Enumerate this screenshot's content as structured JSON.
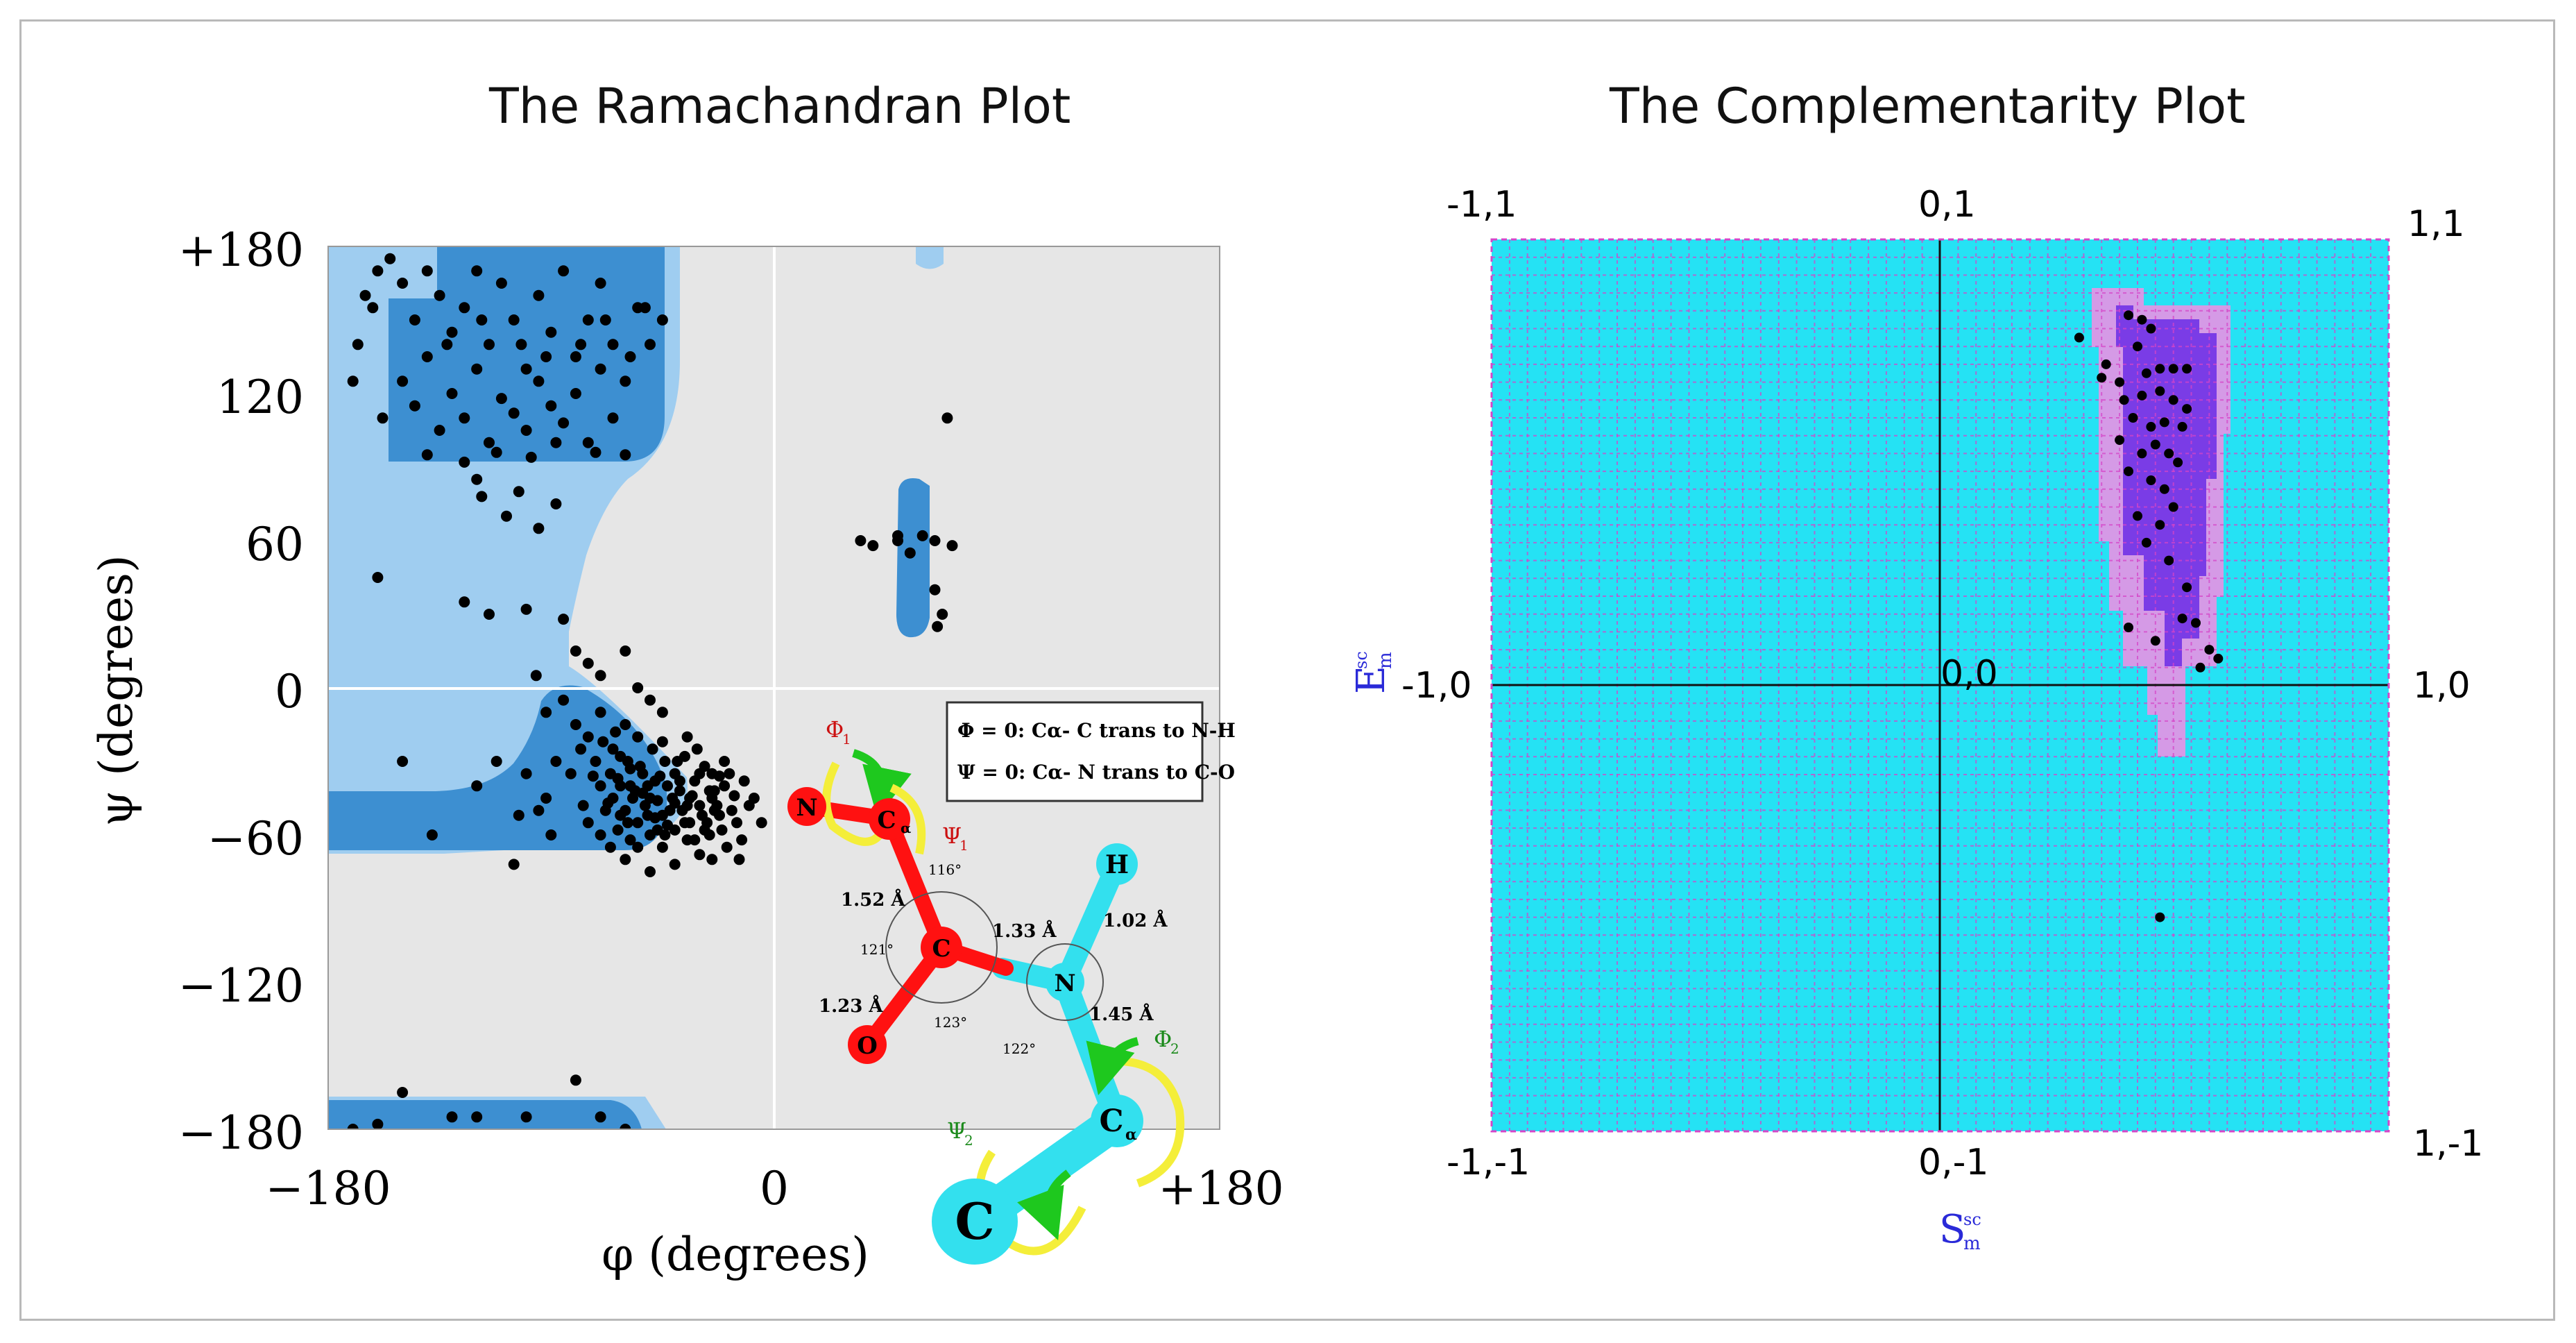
{
  "titles": {
    "ramachandran": "The Ramachandran Plot",
    "complementarity": "The Complementarity Plot"
  },
  "colors": {
    "rama_background": "#e6e6e6",
    "rama_allowed": "#9fcdf0",
    "rama_favored": "#3d8fd1",
    "comp_background": "#25e2f4",
    "comp_grid": "#d545c8",
    "comp_probable": "#d59ae6",
    "comp_most_probable": "#7a3ce6",
    "points": "#000000",
    "molecule_red": "#ff1111",
    "molecule_cyan": "#33e0ee",
    "arrow_green": "#1ec81e",
    "arrow_yellow": "#f4ee3a"
  },
  "ramachandran": {
    "xlabel": "φ (degrees)",
    "ylabel": "ψ (degrees)",
    "x_ticks": [
      "−180",
      "0",
      "+180"
    ],
    "y_ticks": [
      "+180",
      "120",
      "60",
      "0",
      "−60",
      "−120",
      "−180"
    ],
    "legend": {
      "phi_def": "Φ = 0: Cα- C trans to N-H",
      "psi_def": "Ψ = 0: Cα- N trans to C-O"
    },
    "molecule": {
      "atoms": {
        "N": "N",
        "Ca1": "C",
        "Ca1_sub": "α",
        "C": "C",
        "O": "O",
        "N2": "N",
        "H": "H",
        "Ca2": "C",
        "Ca2_sub": "α",
        "C2": "C"
      },
      "bonds": {
        "b1": "1.52 Å",
        "b2": "1.33 Å",
        "b3": "1.02 Å",
        "b4": "1.23 Å",
        "b5": "1.45 Å"
      },
      "angles": {
        "a1": "116°",
        "a2": "121°",
        "a3": "123°",
        "a4": "122°"
      },
      "torsions": {
        "phi1": "Φ",
        "phi1_sub": "1",
        "psi1": "Ψ",
        "psi1_sub": "1",
        "phi2": "Φ",
        "phi2_sub": "2",
        "psi2": "Ψ",
        "psi2_sub": "2"
      }
    }
  },
  "complementarity": {
    "xlabel": "S",
    "xlabel_sub": "m",
    "xlabel_sup": "sc",
    "ylabel": "E",
    "ylabel_sub": "m",
    "ylabel_sup": "sc",
    "corner_labels": {
      "top_left": "-1,1",
      "top_mid": "0,1",
      "top_right": "1,1",
      "mid_left": "-1,0",
      "center": "0,0",
      "mid_right": "1,0",
      "bottom_left": "-1,-1",
      "bottom_mid": "0,-1",
      "bottom_right": "1,-1"
    }
  },
  "chart_data": [
    {
      "type": "scatter",
      "title": "The Ramachandran Plot",
      "xlabel": "φ (degrees)",
      "ylabel": "ψ (degrees)",
      "xlim": [
        -180,
        180
      ],
      "ylim": [
        -180,
        180
      ],
      "x_ticks": [
        -180,
        0,
        180
      ],
      "y_ticks": [
        180,
        120,
        60,
        0,
        -60,
        -120,
        -180
      ],
      "grid": "zero lines only",
      "legend_position": "lower-right inset",
      "points": [
        [
          -160,
          170
        ],
        [
          -155,
          175
        ],
        [
          -162,
          155
        ],
        [
          -168,
          140
        ],
        [
          -150,
          165
        ],
        [
          -145,
          150
        ],
        [
          -140,
          170
        ],
        [
          -135,
          160
        ],
        [
          -130,
          145
        ],
        [
          -125,
          155
        ],
        [
          -120,
          170
        ],
        [
          -115,
          140
        ],
        [
          -110,
          165
        ],
        [
          -105,
          150
        ],
        [
          -100,
          130
        ],
        [
          -95,
          160
        ],
        [
          -90,
          145
        ],
        [
          -85,
          170
        ],
        [
          -80,
          135
        ],
        [
          -75,
          150
        ],
        [
          -70,
          165
        ],
        [
          -65,
          140
        ],
        [
          -60,
          125
        ],
        [
          -55,
          155
        ],
        [
          -150,
          125
        ],
        [
          -145,
          115
        ],
        [
          -140,
          135
        ],
        [
          -135,
          105
        ],
        [
          -130,
          120
        ],
        [
          -125,
          110
        ],
        [
          -120,
          130
        ],
        [
          -115,
          100
        ],
        [
          -110,
          118
        ],
        [
          -105,
          112
        ],
        [
          -100,
          105
        ],
        [
          -95,
          125
        ],
        [
          -90,
          115
        ],
        [
          -85,
          108
        ],
        [
          -80,
          120
        ],
        [
          -75,
          100
        ],
        [
          -70,
          130
        ],
        [
          -65,
          110
        ],
        [
          -140,
          95
        ],
        [
          -125,
          92
        ],
        [
          -112,
          96
        ],
        [
          -98,
          94
        ],
        [
          -88,
          100
        ],
        [
          -72,
          96
        ],
        [
          -60,
          95
        ],
        [
          -50,
          140
        ],
        [
          -165,
          160
        ],
        [
          -170,
          125
        ],
        [
          -158,
          110
        ],
        [
          -132,
          140
        ],
        [
          -118,
          150
        ],
        [
          -102,
          140
        ],
        [
          -92,
          135
        ],
        [
          -78,
          140
        ],
        [
          -68,
          150
        ],
        [
          -58,
          135
        ],
        [
          -52,
          155
        ],
        [
          -45,
          150
        ],
        [
          -120,
          85
        ],
        [
          -118,
          78
        ],
        [
          -108,
          70
        ],
        [
          -103,
          80
        ],
        [
          -95,
          65
        ],
        [
          -88,
          75
        ],
        [
          -160,
          45
        ],
        [
          -125,
          35
        ],
        [
          -115,
          30
        ],
        [
          -100,
          32
        ],
        [
          -85,
          28
        ],
        [
          -80,
          15
        ],
        [
          -75,
          10
        ],
        [
          -70,
          5
        ],
        [
          -60,
          15
        ],
        [
          -55,
          0
        ],
        [
          -150,
          -30
        ],
        [
          -120,
          -40
        ],
        [
          -112,
          -30
        ],
        [
          -100,
          -35
        ],
        [
          -92,
          -45
        ],
        [
          -103,
          -52
        ],
        [
          -138,
          -60
        ],
        [
          -105,
          -72
        ],
        [
          -85,
          -5
        ],
        [
          -80,
          -15
        ],
        [
          -75,
          -20
        ],
        [
          -70,
          -10
        ],
        [
          -65,
          -25
        ],
        [
          -60,
          -15
        ],
        [
          -55,
          -20
        ],
        [
          -50,
          -5
        ],
        [
          -45,
          -10
        ],
        [
          -78,
          -25
        ],
        [
          -72,
          -30
        ],
        [
          -66,
          -35
        ],
        [
          -62,
          -28
        ],
        [
          -58,
          -40
        ],
        [
          -54,
          -32
        ],
        [
          -50,
          -45
        ],
        [
          -46,
          -36
        ],
        [
          -42,
          -50
        ],
        [
          -38,
          -42
        ],
        [
          -34,
          -55
        ],
        [
          -30,
          -48
        ],
        [
          -26,
          -60
        ],
        [
          -22,
          -52
        ],
        [
          -70,
          -40
        ],
        [
          -65,
          -45
        ],
        [
          -60,
          -50
        ],
        [
          -55,
          -55
        ],
        [
          -50,
          -60
        ],
        [
          -45,
          -65
        ],
        [
          -40,
          -58
        ],
        [
          -35,
          -62
        ],
        [
          -30,
          -68
        ],
        [
          -25,
          -45
        ],
        [
          -20,
          -40
        ],
        [
          -15,
          -55
        ],
        [
          -10,
          -48
        ],
        [
          -68,
          -50
        ],
        [
          -63,
          -58
        ],
        [
          -58,
          -62
        ],
        [
          -52,
          -48
        ],
        [
          -48,
          -38
        ],
        [
          -44,
          -30
        ],
        [
          -40,
          -35
        ],
        [
          -36,
          -28
        ],
        [
          -32,
          -38
        ],
        [
          -28,
          -32
        ],
        [
          -24,
          -42
        ],
        [
          -20,
          -30
        ],
        [
          -16,
          -44
        ],
        [
          -12,
          -38
        ],
        [
          -75,
          -55
        ],
        [
          -70,
          -60
        ],
        [
          -66,
          -65
        ],
        [
          -62,
          -52
        ],
        [
          -57,
          -45
        ],
        [
          -53,
          -35
        ],
        [
          -49,
          -25
        ],
        [
          -45,
          -22
        ],
        [
          -41,
          -45
        ],
        [
          -37,
          -50
        ],
        [
          -33,
          -44
        ],
        [
          -29,
          -52
        ],
        [
          -25,
          -35
        ],
        [
          -21,
          -58
        ],
        [
          -17,
          -50
        ],
        [
          -13,
          -62
        ],
        [
          -82,
          -35
        ],
        [
          -77,
          -48
        ],
        [
          -73,
          -36
        ],
        [
          -69,
          -22
        ],
        [
          -64,
          -18
        ],
        [
          -59,
          -30
        ],
        [
          -56,
          -42
        ],
        [
          -51,
          -52
        ],
        [
          -47,
          -58
        ],
        [
          -43,
          -40
        ],
        [
          -39,
          -30
        ],
        [
          -35,
          -20
        ],
        [
          -31,
          -25
        ],
        [
          -27,
          -55
        ],
        [
          -23,
          -48
        ],
        [
          -19,
          -65
        ],
        [
          -8,
          -45
        ],
        [
          -5,
          -55
        ],
        [
          -90,
          -60
        ],
        [
          -95,
          -50
        ],
        [
          -88,
          -30
        ],
        [
          -92,
          -10
        ],
        [
          -96,
          5
        ],
        [
          -60,
          -70
        ],
        [
          -50,
          -75
        ],
        [
          -40,
          -72
        ],
        [
          -25,
          -70
        ],
        [
          -55,
          -65
        ],
        [
          -45,
          -52
        ],
        [
          -35,
          -48
        ],
        [
          -28,
          -58
        ],
        [
          -18,
          -35
        ],
        [
          -14,
          -70
        ],
        [
          -62,
          -40
        ],
        [
          -58,
          -33
        ],
        [
          -53,
          -43
        ],
        [
          -48,
          -53
        ],
        [
          -44,
          -60
        ],
        [
          -40,
          -47
        ],
        [
          -36,
          -55
        ],
        [
          -32,
          -62
        ],
        [
          -26,
          -42
        ],
        [
          -22,
          -36
        ],
        [
          -67,
          -47
        ],
        [
          -63,
          -37
        ],
        [
          -59,
          -55
        ],
        [
          -51,
          -40
        ],
        [
          -47,
          -46
        ],
        [
          -43,
          -56
        ],
        [
          -38,
          -38
        ],
        [
          -34,
          -45
        ],
        [
          -30,
          -35
        ],
        [
          -24,
          -50
        ],
        [
          35,
          60
        ],
        [
          40,
          58
        ],
        [
          50,
          62
        ],
        [
          55,
          55
        ],
        [
          60,
          62
        ],
        [
          65,
          60
        ],
        [
          72,
          58
        ],
        [
          65,
          40
        ],
        [
          68,
          30
        ],
        [
          66,
          25
        ],
        [
          70,
          110
        ],
        [
          50,
          60
        ],
        [
          -170,
          -180
        ],
        [
          -160,
          -178
        ],
        [
          -150,
          -165
        ],
        [
          -130,
          -175
        ],
        [
          -120,
          -175
        ],
        [
          -100,
          -175
        ],
        [
          -80,
          -160
        ],
        [
          -70,
          -175
        ],
        [
          -60,
          -180
        ]
      ]
    },
    {
      "type": "heatmap",
      "title": "The Complementarity Plot",
      "xlabel": "Sm sc",
      "ylabel": "Em sc",
      "xlim": [
        -1,
        1
      ],
      "ylim": [
        -1,
        1
      ],
      "grid": true,
      "points": [
        [
          0.31,
          0.78
        ],
        [
          0.37,
          0.72
        ],
        [
          0.42,
          0.83
        ],
        [
          0.45,
          0.82
        ],
        [
          0.47,
          0.8
        ],
        [
          0.44,
          0.76
        ],
        [
          0.36,
          0.69
        ],
        [
          0.4,
          0.68
        ],
        [
          0.46,
          0.7
        ],
        [
          0.49,
          0.71
        ],
        [
          0.52,
          0.71
        ],
        [
          0.55,
          0.71
        ],
        [
          0.41,
          0.64
        ],
        [
          0.45,
          0.65
        ],
        [
          0.49,
          0.66
        ],
        [
          0.52,
          0.64
        ],
        [
          0.55,
          0.62
        ],
        [
          0.43,
          0.6
        ],
        [
          0.47,
          0.58
        ],
        [
          0.5,
          0.59
        ],
        [
          0.54,
          0.58
        ],
        [
          0.4,
          0.55
        ],
        [
          0.45,
          0.52
        ],
        [
          0.48,
          0.54
        ],
        [
          0.51,
          0.52
        ],
        [
          0.53,
          0.5
        ],
        [
          0.42,
          0.48
        ],
        [
          0.47,
          0.46
        ],
        [
          0.5,
          0.44
        ],
        [
          0.44,
          0.38
        ],
        [
          0.49,
          0.36
        ],
        [
          0.52,
          0.4
        ],
        [
          0.46,
          0.32
        ],
        [
          0.51,
          0.28
        ],
        [
          0.55,
          0.22
        ],
        [
          0.42,
          0.13
        ],
        [
          0.48,
          0.1
        ],
        [
          0.54,
          0.15
        ],
        [
          0.57,
          0.14
        ],
        [
          0.6,
          0.08
        ],
        [
          0.62,
          0.06
        ],
        [
          0.58,
          0.04
        ],
        [
          0.49,
          -0.52
        ]
      ]
    }
  ]
}
